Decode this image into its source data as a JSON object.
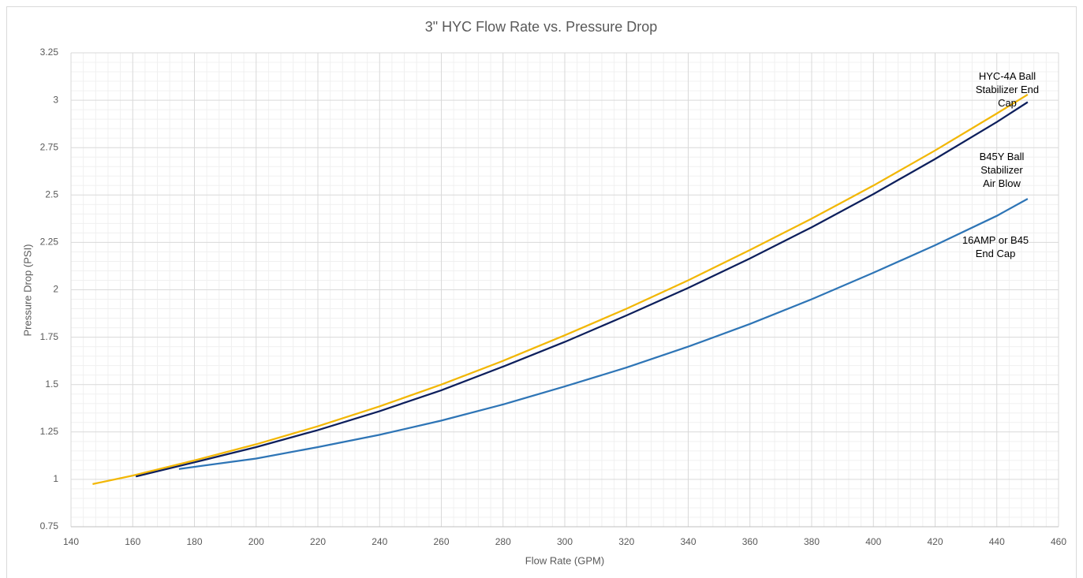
{
  "chart_data": {
    "type": "line",
    "title": "3\" HYC Flow Rate vs. Pressure Drop",
    "x_label": "Flow Rate (GPM)",
    "y_label": "Pressure Drop (PSI)",
    "xlim": [
      140,
      460
    ],
    "xticks": [
      140,
      160,
      180,
      200,
      220,
      240,
      260,
      280,
      300,
      320,
      340,
      360,
      380,
      400,
      420,
      440,
      460
    ],
    "ylim": [
      0.75,
      3.25
    ],
    "yticks": [
      0.75,
      1,
      1.25,
      1.5,
      1.75,
      2,
      2.25,
      2.5,
      2.75,
      3,
      3.25
    ],
    "grid": true,
    "minor_grid": true,
    "series": [
      {
        "name": "HYC-4A Ball\nStabilizer End Cap",
        "color": "#f2b705",
        "x": [
          147,
          160,
          180,
          200,
          220,
          240,
          260,
          280,
          300,
          320,
          340,
          360,
          380,
          400,
          420,
          440,
          450
        ],
        "values": [
          0.975,
          1.02,
          1.1,
          1.185,
          1.28,
          1.385,
          1.5,
          1.625,
          1.76,
          1.9,
          2.05,
          2.21,
          2.375,
          2.55,
          2.735,
          2.93,
          3.03
        ]
      },
      {
        "name": "B45Y Ball Stabilizer\nAir Blow",
        "color": "#0d1f5c",
        "x": [
          161,
          180,
          200,
          220,
          240,
          260,
          280,
          300,
          320,
          340,
          360,
          380,
          400,
          420,
          440,
          450
        ],
        "values": [
          1.015,
          1.09,
          1.17,
          1.26,
          1.36,
          1.47,
          1.595,
          1.725,
          1.865,
          2.01,
          2.165,
          2.33,
          2.505,
          2.69,
          2.885,
          2.99
        ]
      },
      {
        "name": "16AMP or B45\nEnd Cap",
        "color": "#2e75b6",
        "x": [
          175,
          200,
          220,
          240,
          260,
          280,
          300,
          320,
          340,
          360,
          380,
          400,
          420,
          440,
          450
        ],
        "values": [
          1.055,
          1.11,
          1.17,
          1.235,
          1.31,
          1.395,
          1.49,
          1.59,
          1.7,
          1.82,
          1.95,
          2.09,
          2.235,
          2.39,
          2.48
        ]
      }
    ]
  }
}
